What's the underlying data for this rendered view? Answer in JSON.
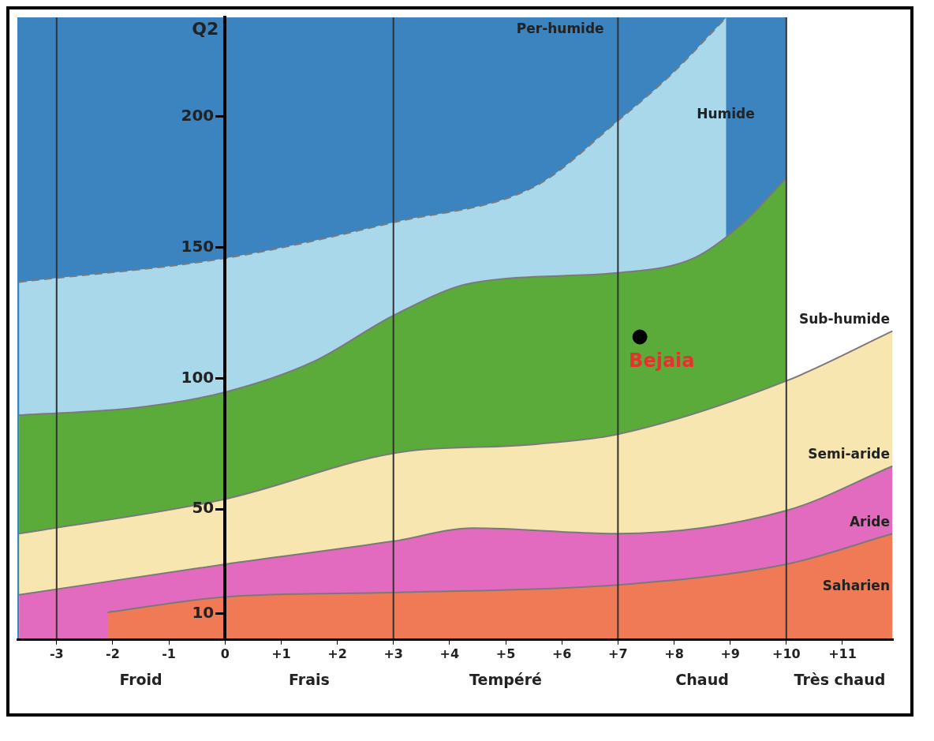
{
  "chart_data": {
    "type": "area",
    "ylabel": "Q2",
    "xlim": [
      -3.7,
      11.9
    ],
    "ylim": [
      0,
      238
    ],
    "xticks": [
      -3,
      -2,
      -1,
      0,
      {
        "value": 1,
        "label": "+1"
      },
      {
        "value": 2,
        "label": "+2"
      },
      {
        "value": 3,
        "label": "+3"
      },
      {
        "value": 4,
        "label": "+4"
      },
      {
        "value": 5,
        "label": "+5"
      },
      {
        "value": 6,
        "label": "+6"
      },
      {
        "value": 7,
        "label": "+7"
      },
      {
        "value": 8,
        "label": "+8"
      },
      {
        "value": 9,
        "label": "+9"
      },
      {
        "value": 10,
        "label": "+10"
      },
      {
        "value": 11,
        "label": "+11"
      }
    ],
    "yticks": [
      10,
      50,
      100,
      150,
      200
    ],
    "grid": false,
    "legend": false,
    "series": [
      {
        "color": "#a8d8ea",
        "line_style": "dashed",
        "x": [
          -3.67,
          0,
          3,
          5.54,
          7,
          7.94,
          8.93
        ],
        "values": [
          136.8,
          145.9,
          159.6,
          173.6,
          198.5,
          216,
          238
        ]
      },
      {
        "color": "#5aab3a",
        "line_style": "solid",
        "x": [
          -3.67,
          -1.53,
          0,
          1.58,
          3,
          4.41,
          7,
          8.36,
          9.21,
          10
        ],
        "values": [
          85.9,
          88.9,
          94.7,
          106.4,
          124,
          136.5,
          140.3,
          146,
          159,
          176.6
        ]
      },
      {
        "color": "#f8e6b0",
        "line_style": "solid",
        "x": [
          -3.67,
          0,
          3,
          5.54,
          7,
          10,
          11.89
        ],
        "values": [
          40.6,
          53.8,
          71.3,
          74.8,
          78.6,
          99,
          118
        ]
      },
      {
        "color": "#e36bbf",
        "line_style": "solid",
        "x": [
          -3.67,
          0,
          3,
          4.41,
          7,
          10,
          11.89
        ],
        "values": [
          17.2,
          28.9,
          37.7,
          42.7,
          40.6,
          49.4,
          66.4
        ]
      },
      {
        "color": "#f07a55",
        "line_style": "solid",
        "x": [
          -2.09,
          0,
          3,
          7,
          10,
          11.89
        ],
        "values": [
          10.5,
          16.4,
          18.1,
          21,
          28.9,
          40.6
        ]
      },
      {
        "type": "scatter",
        "name": "Bejaia",
        "color": "#000000",
        "marker": "circle",
        "x": [
          7.39
        ],
        "values": [
          115.8
        ]
      }
    ],
    "ref_lines": [
      {
        "axis": "x",
        "value": -3,
        "color": "#333333"
      },
      {
        "axis": "x",
        "value": 3,
        "color": "#333333"
      },
      {
        "axis": "x",
        "value": 7,
        "color": "#333333"
      },
      {
        "axis": "x",
        "value": 10,
        "color": "#333333"
      }
    ],
    "bands": [
      {
        "axis": "x",
        "from": -3.7,
        "to": 10,
        "color": "#3b84c0"
      }
    ],
    "annotations": [
      "Per-humide",
      "Humide",
      "Sub-humide",
      "Semi-aride",
      "Aride",
      "Saharien",
      "Froid",
      "Frais",
      "Tempéré",
      "Chaud",
      "Très chaud"
    ]
  }
}
